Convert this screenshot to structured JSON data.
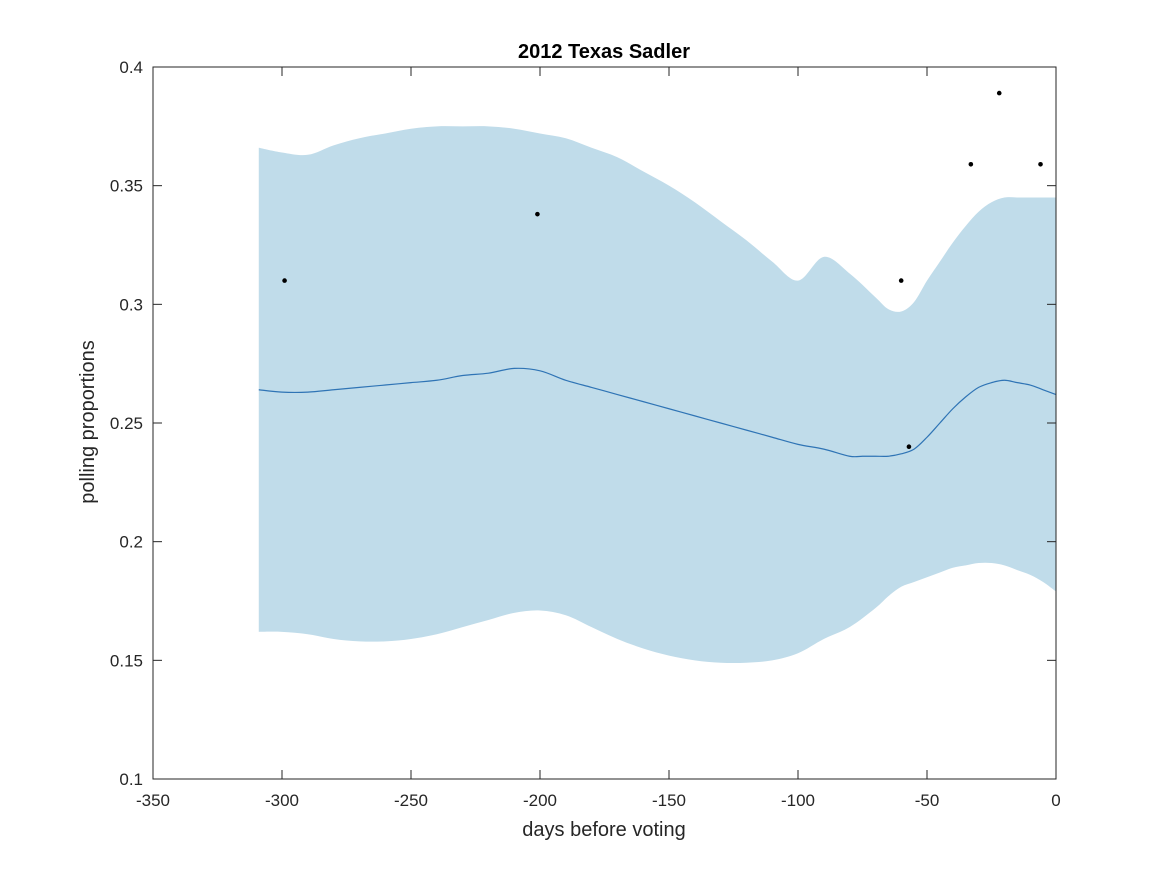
{
  "colors": {
    "band": "#c0dcea",
    "mean_line": "#2f74b5",
    "points": "#000000",
    "axes": "#262626",
    "background": "#ffffff"
  },
  "chart_data": {
    "type": "line",
    "title": "2012 Texas Sadler",
    "xlabel": "days before voting",
    "ylabel": "polling proportions",
    "xlim": [
      -350,
      0
    ],
    "ylim": [
      0.1,
      0.4
    ],
    "xticks": [
      -350,
      -300,
      -250,
      -200,
      -150,
      -100,
      -50,
      0
    ],
    "yticks": [
      0.1,
      0.15,
      0.2,
      0.25,
      0.3,
      0.35,
      0.4
    ],
    "xtick_labels": [
      "-350",
      "-300",
      "-250",
      "-200",
      "-150",
      "-100",
      "-50",
      "0"
    ],
    "ytick_labels": [
      "0.1",
      "0.15",
      "0.2",
      "0.25",
      "0.3",
      "0.35",
      "0.4"
    ],
    "grid": false,
    "legend": "none",
    "series": [
      {
        "kind": "band",
        "x": [
          -309,
          -300,
          -290,
          -280,
          -270,
          -260,
          -250,
          -240,
          -230,
          -220,
          -210,
          -200,
          -190,
          -180,
          -170,
          -160,
          -150,
          -140,
          -130,
          -120,
          -110,
          -100,
          -90,
          -80,
          -70,
          -65,
          -60,
          -55,
          -50,
          -45,
          -40,
          -35,
          -30,
          -25,
          -20,
          -15,
          -10,
          -5,
          0
        ],
        "upper": [
          0.366,
          0.364,
          0.363,
          0.367,
          0.37,
          0.372,
          0.374,
          0.375,
          0.375,
          0.375,
          0.374,
          0.372,
          0.37,
          0.366,
          0.362,
          0.356,
          0.35,
          0.343,
          0.335,
          0.327,
          0.318,
          0.31,
          0.32,
          0.313,
          0.303,
          0.298,
          0.297,
          0.301,
          0.31,
          0.318,
          0.326,
          0.333,
          0.339,
          0.343,
          0.345,
          0.345,
          0.345,
          0.345,
          0.345
        ],
        "lower": [
          0.162,
          0.162,
          0.161,
          0.159,
          0.158,
          0.158,
          0.159,
          0.161,
          0.164,
          0.167,
          0.17,
          0.171,
          0.169,
          0.164,
          0.159,
          0.155,
          0.152,
          0.15,
          0.149,
          0.149,
          0.15,
          0.153,
          0.159,
          0.164,
          0.172,
          0.177,
          0.181,
          0.183,
          0.185,
          0.187,
          0.189,
          0.19,
          0.191,
          0.191,
          0.19,
          0.188,
          0.186,
          0.183,
          0.179
        ]
      },
      {
        "kind": "line",
        "x": [
          -309,
          -300,
          -290,
          -280,
          -270,
          -260,
          -250,
          -240,
          -230,
          -220,
          -210,
          -200,
          -190,
          -180,
          -170,
          -160,
          -150,
          -140,
          -130,
          -120,
          -110,
          -100,
          -90,
          -80,
          -75,
          -70,
          -65,
          -60,
          -55,
          -50,
          -45,
          -40,
          -35,
          -30,
          -25,
          -20,
          -15,
          -10,
          -5,
          0
        ],
        "y": [
          0.264,
          0.263,
          0.263,
          0.264,
          0.265,
          0.266,
          0.267,
          0.268,
          0.27,
          0.271,
          0.273,
          0.272,
          0.268,
          0.265,
          0.262,
          0.259,
          0.256,
          0.253,
          0.25,
          0.247,
          0.244,
          0.241,
          0.239,
          0.236,
          0.236,
          0.236,
          0.236,
          0.237,
          0.239,
          0.244,
          0.25,
          0.256,
          0.261,
          0.265,
          0.267,
          0.268,
          0.267,
          0.266,
          0.264,
          0.262
        ]
      },
      {
        "kind": "scatter",
        "x": [
          -299,
          -201,
          -60,
          -57,
          -33,
          -22,
          -6
        ],
        "y": [
          0.31,
          0.338,
          0.31,
          0.24,
          0.359,
          0.389,
          0.359
        ]
      }
    ]
  }
}
